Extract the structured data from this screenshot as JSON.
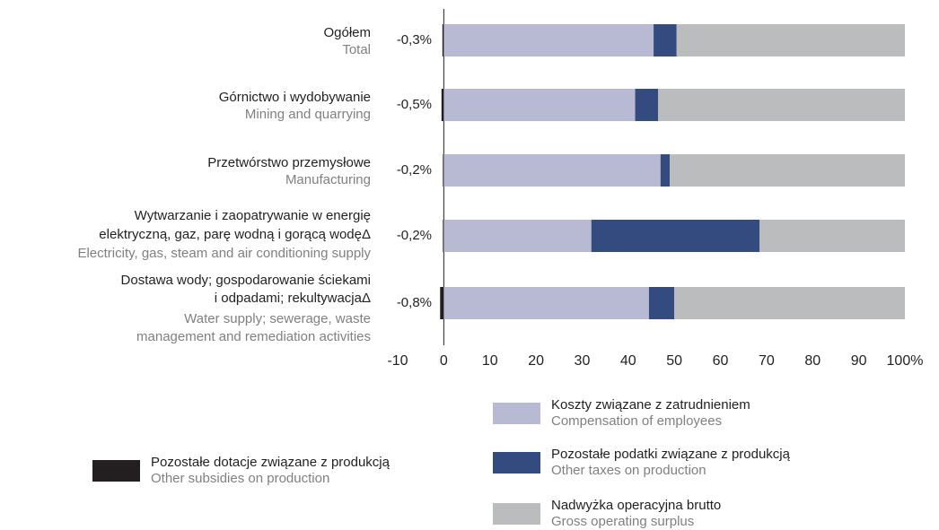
{
  "chart_data": {
    "type": "stacked-barh",
    "categories": [
      [
        "Ogółem"
      ],
      [
        "Górnictwo i wydobywanie"
      ],
      [
        "Przetwórstwo przemysłowe"
      ],
      [
        "Wytwarzanie i zaopatrywanie w energię",
        "elektryczną, gaz, parę wodną i gorącą wodęΔ"
      ],
      [
        "Dostawa wody; gospodarowanie ściekami",
        "i odpadami; rekultywacjaΔ"
      ]
    ],
    "categories_en": [
      [
        "Total"
      ],
      [
        "Mining and quarrying"
      ],
      [
        "Manufacturing"
      ],
      [
        "Electricity, gas, steam and air conditioning supply"
      ],
      [
        "Water supply; sewerage, waste",
        "management and remediation activities"
      ]
    ],
    "series": [
      {
        "name": "Pozostałe dotacje związane z produkcją",
        "name_en": "Other subsidies on production",
        "color": "#231f20",
        "values": [
          -0.3,
          -0.5,
          -0.2,
          -0.2,
          -0.8
        ],
        "value_labels": [
          "-0,3%",
          "-0,5%",
          "-0,2%",
          "-0,2%",
          "-0,8%"
        ]
      },
      {
        "name": "Koszty związane z zatrudnieniem",
        "name_en": "Compensation of employees",
        "color": "#b8bad3",
        "values": [
          45.5,
          41.5,
          47,
          32,
          44.5
        ]
      },
      {
        "name": "Pozostałe podatki związane z produkcją",
        "name_en": "Other taxes on production",
        "color": "#344b80",
        "values": [
          5,
          5,
          2,
          36.5,
          5.5
        ]
      },
      {
        "name": "Nadwyżka operacyjna brutto",
        "name_en": "Gross operating surplus",
        "color": "#bbbcbe",
        "values": [
          49.5,
          53.5,
          51,
          31.5,
          50
        ]
      }
    ],
    "xlim": [
      -10,
      100
    ],
    "xticks": [
      -10,
      0,
      10,
      20,
      30,
      40,
      50,
      60,
      70,
      80,
      90,
      {
        "value": 100,
        "label": "100%"
      }
    ]
  }
}
